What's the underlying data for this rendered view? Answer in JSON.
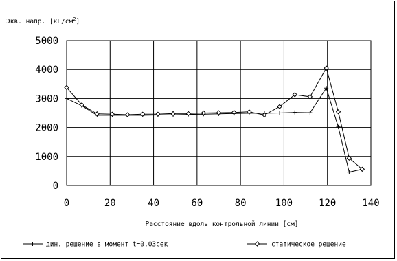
{
  "chart_data": {
    "type": "line",
    "ylabel_prefix": "Экв. напр. [кГ/см",
    "ylabel_sup": "2",
    "ylabel_suffix": "]",
    "xlabel": "Расстояние вдоль контрольной линии [см]",
    "xlim": [
      0,
      140
    ],
    "ylim": [
      0,
      5000
    ],
    "xticks": [
      "0",
      "20",
      "40",
      "60",
      "80",
      "100",
      "120",
      "140"
    ],
    "yticks": [
      "0",
      "1000",
      "2000",
      "3000",
      "4000",
      "5000"
    ],
    "grid": true,
    "legend_position": "bottom",
    "series": [
      {
        "name": "дин. решение в момент t=0.03сек",
        "marker": "plus",
        "x": [
          0,
          7,
          14,
          21,
          28,
          35,
          42,
          49,
          56,
          63,
          70,
          77,
          84,
          91,
          98,
          105,
          112,
          119.5,
          125,
          130,
          136
        ],
        "y": [
          3000,
          2750,
          2420,
          2420,
          2420,
          2420,
          2430,
          2440,
          2450,
          2460,
          2470,
          2480,
          2490,
          2490,
          2500,
          2520,
          2510,
          3360,
          2020,
          460,
          560
        ]
      },
      {
        "name": "статическое решение",
        "marker": "diamond",
        "x": [
          0,
          7,
          14,
          21,
          28,
          35,
          42,
          49,
          56,
          63,
          70,
          77,
          84,
          91,
          98,
          105,
          112,
          119.5,
          125,
          130,
          136
        ],
        "y": [
          3380,
          2780,
          2470,
          2460,
          2440,
          2460,
          2460,
          2480,
          2480,
          2500,
          2510,
          2520,
          2540,
          2430,
          2720,
          3130,
          3060,
          4050,
          2540,
          940,
          560
        ]
      }
    ]
  }
}
